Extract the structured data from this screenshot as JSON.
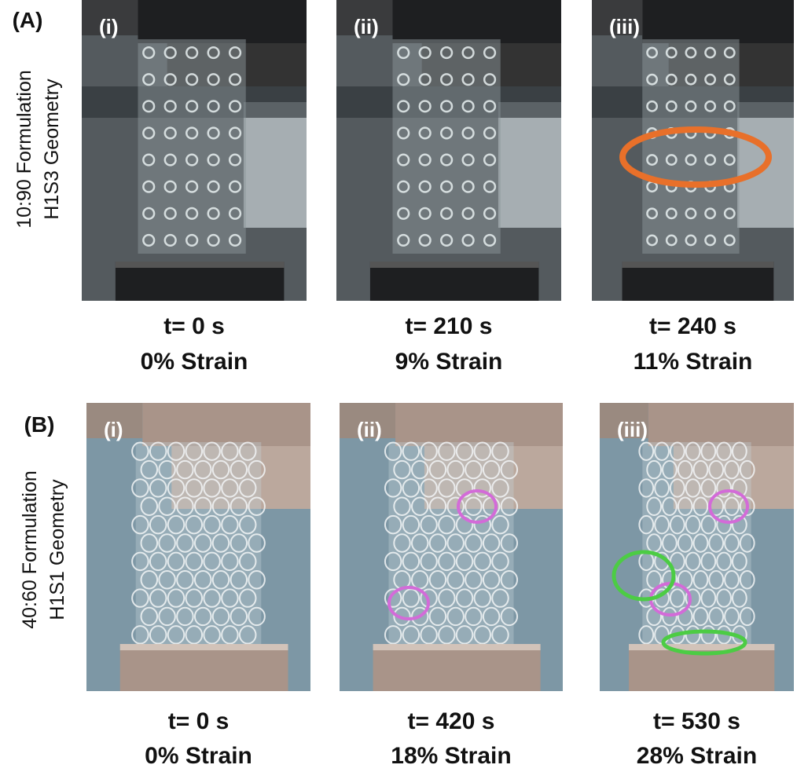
{
  "panels": [
    {
      "label": "(A)",
      "row_label": [
        "10:90 Formulation",
        "H1S3 Geometry"
      ],
      "images": [
        {
          "label": "(i)",
          "time": "t= 0 s",
          "strain": "0% Strain"
        },
        {
          "label": "(ii)",
          "time": "t= 210 s",
          "strain": "9% Strain"
        },
        {
          "label": "(iii)",
          "time": "t= 240 s",
          "strain": "11% Strain"
        }
      ]
    },
    {
      "label": "(B)",
      "row_label": [
        "40:60 Formulation",
        "H1S1 Geometry"
      ],
      "images": [
        {
          "label": "(i)",
          "time": "t= 0 s",
          "strain": "0% Strain"
        },
        {
          "label": "(ii)",
          "time": "t= 420 s",
          "strain": "18% Strain"
        },
        {
          "label": "(iii)",
          "time": "t= 530 s",
          "strain": "28% Strain"
        }
      ]
    }
  ]
}
